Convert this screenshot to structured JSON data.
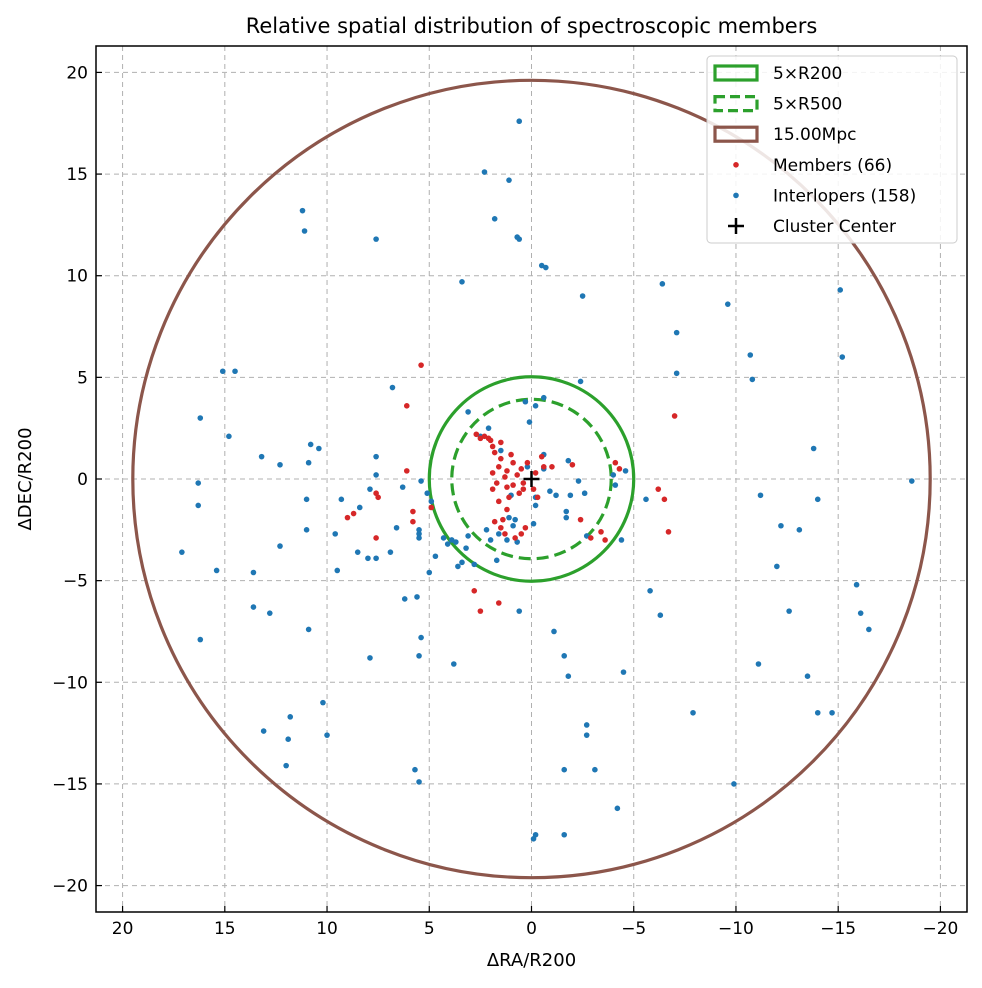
{
  "chart_data": {
    "type": "scatter",
    "title": "Relative spatial distribution of spectroscopic members",
    "xlabel": "ΔRA/R200",
    "ylabel": "ΔDEC/R200",
    "xlim": [
      21.3,
      -21.3
    ],
    "ylim": [
      -21.3,
      21.3
    ],
    "x_ticks": [
      20,
      15,
      10,
      5,
      0,
      -5,
      -10,
      -15,
      -20
    ],
    "x_tick_labels": [
      "20",
      "15",
      "10",
      "5",
      "0",
      "−5",
      "−10",
      "−15",
      "−20"
    ],
    "y_ticks": [
      20,
      15,
      10,
      5,
      0,
      -5,
      -10,
      -15,
      -20
    ],
    "y_tick_labels": [
      "20",
      "15",
      "10",
      "5",
      "0",
      "−5",
      "−10",
      "−15",
      "−20"
    ],
    "grid": true,
    "legend_position": "top-right",
    "circles": [
      {
        "name": "5×R200",
        "radius": 5.0,
        "color": "#2ca02c",
        "style": "solid"
      },
      {
        "name": "5×R500",
        "radius": 3.9,
        "color": "#2ca02c",
        "style": "dashed"
      },
      {
        "name": "15.00Mpc",
        "radius": 19.5,
        "color": "#8c564b",
        "style": "solid"
      }
    ],
    "members": {
      "name": "Members (66)",
      "color": "#d62728",
      "points": [
        [
          5.4,
          5.6
        ],
        [
          6.1,
          3.6
        ],
        [
          -7.0,
          3.1
        ],
        [
          -0.5,
          1.1
        ],
        [
          -1.0,
          0.6
        ],
        [
          -0.2,
          0.3
        ],
        [
          0.2,
          0.8
        ],
        [
          0.5,
          0.5
        ],
        [
          0.9,
          0.8
        ],
        [
          1.2,
          0.4
        ],
        [
          1.5,
          1.0
        ],
        [
          1.8,
          1.3
        ],
        [
          1.6,
          0.6
        ],
        [
          1.9,
          1.6
        ],
        [
          2.0,
          1.9
        ],
        [
          1.5,
          1.8
        ],
        [
          1.0,
          1.2
        ],
        [
          0.7,
          0.2
        ],
        [
          0.4,
          -0.2
        ],
        [
          0.9,
          -0.3
        ],
        [
          1.2,
          -0.4
        ],
        [
          1.7,
          -0.2
        ],
        [
          1.9,
          -0.5
        ],
        [
          1.6,
          -1.1
        ],
        [
          1.2,
          -1.5
        ],
        [
          1.4,
          -2.0
        ],
        [
          1.8,
          -2.1
        ],
        [
          1.5,
          -2.4
        ],
        [
          1.3,
          -2.7
        ],
        [
          0.8,
          -2.9
        ],
        [
          0.3,
          -2.4
        ],
        [
          0.5,
          -2.7
        ],
        [
          1.9,
          0.3
        ],
        [
          2.3,
          2.1
        ],
        [
          2.5,
          2.0
        ],
        [
          2.7,
          2.2
        ],
        [
          -0.3,
          -0.9
        ],
        [
          -2.4,
          -2.0
        ],
        [
          -3.4,
          -2.6
        ],
        [
          -2.9,
          -2.9
        ],
        [
          -3.6,
          -3.0
        ],
        [
          -4.1,
          0.8
        ],
        [
          -4.3,
          0.5
        ],
        [
          -6.2,
          -0.5
        ],
        [
          -6.5,
          -1.0
        ],
        [
          -6.7,
          -2.6
        ],
        [
          -2.0,
          0.7
        ],
        [
          7.6,
          -0.7
        ],
        [
          7.5,
          -0.9
        ],
        [
          7.6,
          -2.9
        ],
        [
          5.8,
          -1.6
        ],
        [
          5.8,
          -2.1
        ],
        [
          6.1,
          0.4
        ],
        [
          8.7,
          -1.7
        ],
        [
          9.0,
          -1.9
        ],
        [
          4.9,
          -1.4
        ],
        [
          2.8,
          -5.5
        ],
        [
          2.5,
          -6.5
        ],
        [
          1.6,
          -6.1
        ],
        [
          0.4,
          -0.5
        ],
        [
          0.6,
          -0.7
        ],
        [
          1.1,
          -0.9
        ],
        [
          -0.1,
          -0.5
        ],
        [
          -0.6,
          0.6
        ],
        [
          2.1,
          2.0
        ],
        [
          1.3,
          0.1
        ]
      ]
    },
    "interlopers": {
      "name": "Interlopers (158)",
      "color": "#1f77b4",
      "points": [
        [
          0.6,
          17.6
        ],
        [
          2.3,
          15.1
        ],
        [
          1.1,
          14.7
        ],
        [
          1.8,
          12.8
        ],
        [
          0.7,
          11.9
        ],
        [
          0.6,
          11.8
        ],
        [
          -0.5,
          10.5
        ],
        [
          -0.7,
          10.4
        ],
        [
          3.4,
          9.7
        ],
        [
          -2.5,
          9.0
        ],
        [
          -6.4,
          9.6
        ],
        [
          -9.6,
          8.6
        ],
        [
          -10.7,
          6.1
        ],
        [
          -7.1,
          7.2
        ],
        [
          -7.1,
          5.2
        ],
        [
          -15.1,
          9.3
        ],
        [
          -15.2,
          6.0
        ],
        [
          -10.8,
          4.9
        ],
        [
          -2.4,
          4.8
        ],
        [
          11.2,
          13.2
        ],
        [
          11.1,
          12.2
        ],
        [
          7.6,
          11.8
        ],
        [
          15.1,
          5.3
        ],
        [
          14.5,
          5.3
        ],
        [
          16.2,
          3.0
        ],
        [
          14.8,
          2.1
        ],
        [
          13.2,
          1.1
        ],
        [
          12.3,
          0.7
        ],
        [
          10.8,
          1.7
        ],
        [
          10.4,
          1.5
        ],
        [
          10.9,
          0.8
        ],
        [
          16.3,
          -0.2
        ],
        [
          16.3,
          -1.3
        ],
        [
          11.0,
          -1.0
        ],
        [
          11.0,
          -2.5
        ],
        [
          9.6,
          -2.7
        ],
        [
          9.3,
          -1.0
        ],
        [
          8.4,
          -1.4
        ],
        [
          7.9,
          -0.5
        ],
        [
          7.6,
          0.2
        ],
        [
          7.6,
          1.1
        ],
        [
          6.8,
          4.5
        ],
        [
          6.3,
          -0.4
        ],
        [
          17.1,
          -3.6
        ],
        [
          15.4,
          -4.5
        ],
        [
          13.6,
          -4.6
        ],
        [
          12.3,
          -3.3
        ],
        [
          9.5,
          -4.5
        ],
        [
          8.5,
          -3.6
        ],
        [
          8.0,
          -3.9
        ],
        [
          7.6,
          -3.9
        ],
        [
          6.9,
          -3.6
        ],
        [
          6.6,
          -2.4
        ],
        [
          5.5,
          -2.5
        ],
        [
          5.5,
          -2.7
        ],
        [
          5.5,
          -2.9
        ],
        [
          5.4,
          -0.1
        ],
        [
          5.1,
          -0.7
        ],
        [
          5.0,
          -4.6
        ],
        [
          4.7,
          -3.8
        ],
        [
          4.3,
          -2.9
        ],
        [
          4.1,
          -3.2
        ],
        [
          3.9,
          -3.0
        ],
        [
          3.7,
          -3.1
        ],
        [
          3.6,
          -4.3
        ],
        [
          3.4,
          -4.1
        ],
        [
          3.2,
          -3.4
        ],
        [
          3.1,
          -2.8
        ],
        [
          2.8,
          -4.2
        ],
        [
          4.9,
          -1.1
        ],
        [
          3.1,
          3.3
        ],
        [
          2.5,
          2.1
        ],
        [
          2.1,
          2.5
        ],
        [
          1.5,
          1.4
        ],
        [
          0.2,
          0.6
        ],
        [
          -0.2,
          3.6
        ],
        [
          -0.6,
          4.0
        ],
        [
          0.3,
          3.8
        ],
        [
          0.1,
          2.8
        ],
        [
          -0.6,
          0.5
        ],
        [
          -0.9,
          -0.6
        ],
        [
          -1.2,
          -0.8
        ],
        [
          -0.6,
          1.2
        ],
        [
          -1.8,
          0.9
        ],
        [
          -2.3,
          -0.1
        ],
        [
          -1.9,
          -0.8
        ],
        [
          -2.6,
          -0.7
        ],
        [
          -1.7,
          -1.9
        ],
        [
          -2.7,
          -2.8
        ],
        [
          -4.6,
          0.4
        ],
        [
          -4.0,
          0.2
        ],
        [
          -5.8,
          -5.5
        ],
        [
          -6.3,
          -6.7
        ],
        [
          -5.6,
          -1.0
        ],
        [
          -4.4,
          -3.0
        ],
        [
          1.6,
          -2.7
        ],
        [
          1.2,
          -3.0
        ],
        [
          0.9,
          -2.3
        ],
        [
          1.1,
          -1.9
        ],
        [
          1.0,
          -0.8
        ],
        [
          2.0,
          -3.0
        ],
        [
          2.2,
          -2.5
        ],
        [
          0.7,
          -3.1
        ],
        [
          1.7,
          -4.0
        ],
        [
          -0.1,
          -2.2
        ],
        [
          -0.2,
          -1.3
        ],
        [
          16.2,
          -7.9
        ],
        [
          13.6,
          -6.3
        ],
        [
          12.8,
          -6.6
        ],
        [
          10.9,
          -7.4
        ],
        [
          10.2,
          -11.0
        ],
        [
          10.0,
          -12.6
        ],
        [
          11.8,
          -11.7
        ],
        [
          11.9,
          -12.8
        ],
        [
          13.1,
          -12.4
        ],
        [
          12.0,
          -14.1
        ],
        [
          7.9,
          -8.8
        ],
        [
          5.4,
          -7.8
        ],
        [
          5.5,
          -8.7
        ],
        [
          5.6,
          -5.8
        ],
        [
          6.2,
          -5.9
        ],
        [
          3.8,
          -9.1
        ],
        [
          0.6,
          -6.5
        ],
        [
          -1.1,
          -7.5
        ],
        [
          -1.6,
          -8.7
        ],
        [
          -1.8,
          -9.7
        ],
        [
          -2.7,
          -12.1
        ],
        [
          -2.7,
          -12.6
        ],
        [
          -3.1,
          -14.3
        ],
        [
          -1.6,
          -14.3
        ],
        [
          -4.5,
          -9.5
        ],
        [
          -4.2,
          -16.2
        ],
        [
          -1.6,
          -17.5
        ],
        [
          -0.2,
          -17.5
        ],
        [
          -0.1,
          -17.7
        ],
        [
          5.7,
          -14.3
        ],
        [
          5.5,
          -14.9
        ],
        [
          -7.9,
          -11.5
        ],
        [
          -9.9,
          -15.0
        ],
        [
          -11.1,
          -9.1
        ],
        [
          -12.0,
          -4.3
        ],
        [
          -12.2,
          -2.3
        ],
        [
          -13.1,
          -2.5
        ],
        [
          -12.6,
          -6.5
        ],
        [
          -13.5,
          -9.7
        ],
        [
          -14.0,
          -11.5
        ],
        [
          -14.7,
          -11.5
        ],
        [
          -15.9,
          -5.2
        ],
        [
          -16.1,
          -6.6
        ],
        [
          -16.5,
          -7.4
        ],
        [
          -18.6,
          -0.1
        ],
        [
          -13.8,
          1.5
        ],
        [
          -14.0,
          -1.0
        ],
        [
          -11.2,
          -0.8
        ],
        [
          -0.2,
          -0.9
        ],
        [
          -1.7,
          -1.6
        ],
        [
          -4.1,
          -0.3
        ],
        [
          0.8,
          -2.0
        ]
      ]
    },
    "center": {
      "name": "Cluster Center",
      "x": 0,
      "y": 0,
      "color": "#000000",
      "marker": "+"
    }
  }
}
